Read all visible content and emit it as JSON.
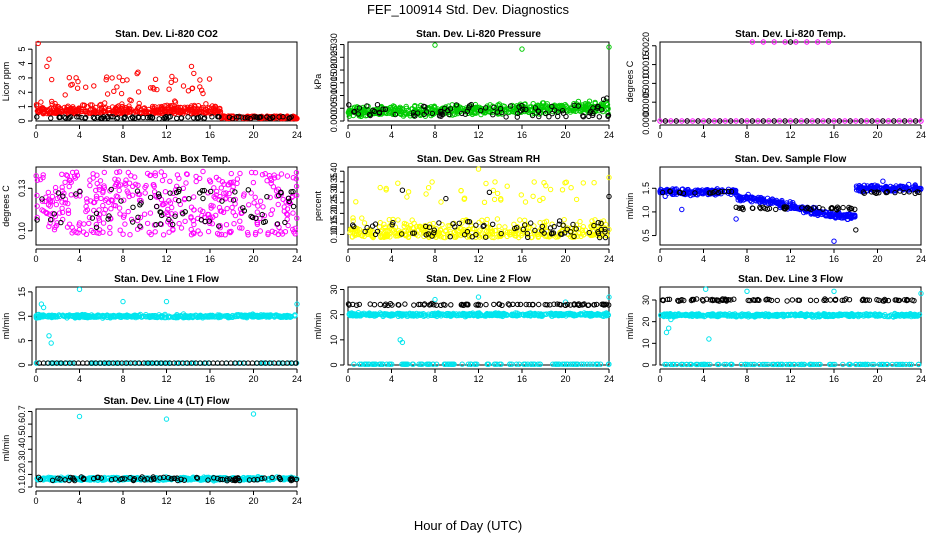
{
  "figure": {
    "title": "FEF_100914  Std. Dev. Diagnostics",
    "xlabel": "Hour of Day (UTC)"
  },
  "chart_data": [
    {
      "type": "scatter",
      "title": "Stan. Dev. Li-820 CO2",
      "ylabel": "Licor ppm",
      "xlim": [
        0,
        24
      ],
      "ylim": [
        0,
        5.5
      ],
      "xticks": [
        "0",
        "4",
        "8",
        "12",
        "16",
        "20",
        "24"
      ],
      "yticks": [
        "0",
        "1",
        "2",
        "3",
        "4",
        "5"
      ],
      "ytickvals": [
        0,
        1,
        2,
        3,
        4,
        5
      ],
      "series": [
        {
          "name": "red",
          "color": "#ff0000",
          "pattern": "co2_red"
        },
        {
          "name": "black",
          "color": "#000000",
          "pattern": "co2_black"
        }
      ]
    },
    {
      "type": "scatter",
      "title": "Stan. Dev. Li-820 Pressure",
      "ylabel": "kPa",
      "xlim": [
        0,
        24
      ],
      "ylim": [
        0,
        0.031
      ],
      "xticks": [
        "0",
        "4",
        "8",
        "12",
        "16",
        "20",
        "24"
      ],
      "yticks": [
        "0.000",
        "0.005",
        "0.010",
        "0.015",
        "0.020",
        "0.025",
        "0.030"
      ],
      "ytickvals": [
        0,
        0.005,
        0.01,
        0.015,
        0.02,
        0.025,
        0.03
      ],
      "series": [
        {
          "name": "green",
          "color": "#00cc00",
          "pattern": "press_green"
        },
        {
          "name": "black",
          "color": "#000000",
          "pattern": "press_black"
        }
      ]
    },
    {
      "type": "scatter",
      "title": "Stan. Dev. Li-820 Temp.",
      "ylabel": "degrees C",
      "xlim": [
        0,
        24
      ],
      "ylim": [
        0,
        0.0021
      ],
      "xticks": [
        "0",
        "4",
        "8",
        "12",
        "16",
        "20",
        "24"
      ],
      "yticks": [
        "0.0000",
        "0.0005",
        "0.0010",
        "0.0015",
        "0.0020"
      ],
      "ytickvals": [
        0,
        0.0005,
        0.001,
        0.0015,
        0.002
      ],
      "series": [
        {
          "name": "magenta",
          "color": "#ff00ff",
          "pattern": "temp_magenta"
        },
        {
          "name": "black",
          "color": "#000000",
          "pattern": "temp_black"
        }
      ]
    },
    {
      "type": "scatter",
      "title": "Stan. Dev. Amb. Box Temp.",
      "ylabel": "degrees C",
      "xlim": [
        0,
        24
      ],
      "ylim": [
        0.09,
        0.145
      ],
      "xticks": [
        "0",
        "4",
        "8",
        "12",
        "16",
        "20",
        "24"
      ],
      "yticks": [
        "0.10",
        "0.13"
      ],
      "ytickvals": [
        0.1,
        0.13
      ],
      "series": [
        {
          "name": "magenta",
          "color": "#ff00ff",
          "pattern": "box_magenta"
        },
        {
          "name": "black",
          "color": "#000000",
          "pattern": "box_black"
        }
      ]
    },
    {
      "type": "scatter",
      "title": "Stan. Dev. Gas Stream RH",
      "ylabel": "percent",
      "xlim": [
        0,
        24
      ],
      "ylim": [
        0.05,
        0.42
      ],
      "xticks": [
        "0",
        "4",
        "8",
        "12",
        "16",
        "20",
        "24"
      ],
      "yticks": [
        "0.10",
        "0.15",
        "0.20",
        "0.25",
        "0.30",
        "0.35",
        "0.40"
      ],
      "ytickvals": [
        0.1,
        0.15,
        0.2,
        0.25,
        0.3,
        0.35,
        0.4
      ],
      "series": [
        {
          "name": "yellow",
          "color": "#ffff00",
          "pattern": "rh_yellow"
        },
        {
          "name": "black",
          "color": "#000000",
          "pattern": "rh_black"
        }
      ]
    },
    {
      "type": "scatter",
      "title": "Stan. Dev. Sample Flow",
      "ylabel": "ml/min",
      "xlim": [
        0,
        24
      ],
      "ylim": [
        0.3,
        1.95
      ],
      "xticks": [
        "0",
        "4",
        "8",
        "12",
        "16",
        "20",
        "24"
      ],
      "yticks": [
        "0.5",
        "1.0",
        "1.5"
      ],
      "ytickvals": [
        0.5,
        1.0,
        1.5
      ],
      "series": [
        {
          "name": "blue",
          "color": "#0000ff",
          "pattern": "flow_blue"
        },
        {
          "name": "black",
          "color": "#000000",
          "pattern": "flow_black"
        }
      ]
    },
    {
      "type": "scatter",
      "title": "Stan. Dev. Line 1 Flow",
      "ylabel": "ml/min",
      "xlim": [
        0,
        24
      ],
      "ylim": [
        0,
        16
      ],
      "xticks": [
        "0",
        "4",
        "8",
        "12",
        "16",
        "20",
        "24"
      ],
      "yticks": [
        "0",
        "5",
        "10",
        "15"
      ],
      "ytickvals": [
        0,
        5,
        10,
        15
      ],
      "series": [
        {
          "name": "cyan",
          "color": "#00e5ee",
          "pattern": "l1_cyan"
        },
        {
          "name": "black",
          "color": "#000000",
          "pattern": "l1_black"
        }
      ]
    },
    {
      "type": "scatter",
      "title": "Stan. Dev. Line 2 Flow",
      "ylabel": "ml/min",
      "xlim": [
        0,
        24
      ],
      "ylim": [
        0,
        31
      ],
      "xticks": [
        "0",
        "4",
        "8",
        "12",
        "16",
        "20",
        "24"
      ],
      "yticks": [
        "0",
        "10",
        "20",
        "30"
      ],
      "ytickvals": [
        0,
        10,
        20,
        30
      ],
      "series": [
        {
          "name": "cyan",
          "color": "#00e5ee",
          "pattern": "l2_cyan"
        },
        {
          "name": "black",
          "color": "#000000",
          "pattern": "l2_black"
        }
      ]
    },
    {
      "type": "scatter",
      "title": "Stan. Dev. Line 3 Flow",
      "ylabel": "ml/min",
      "xlim": [
        0,
        24
      ],
      "ylim": [
        0,
        36
      ],
      "xticks": [
        "0",
        "4",
        "8",
        "12",
        "16",
        "20",
        "24"
      ],
      "yticks": [
        "0",
        "10",
        "20",
        "30"
      ],
      "ytickvals": [
        0,
        10,
        20,
        30
      ],
      "series": [
        {
          "name": "cyan",
          "color": "#00e5ee",
          "pattern": "l3_cyan"
        },
        {
          "name": "black",
          "color": "#000000",
          "pattern": "l3_black"
        }
      ]
    },
    {
      "type": "scatter",
      "title": "Stan. Dev. Line 4 (LT) Flow",
      "ylabel": "ml/min",
      "xlim": [
        0,
        24
      ],
      "ylim": [
        0.1,
        0.72
      ],
      "xticks": [
        "0",
        "4",
        "8",
        "12",
        "16",
        "20",
        "24"
      ],
      "yticks": [
        "0.1",
        "0.2",
        "0.3",
        "0.4",
        "0.5",
        "0.6",
        "0.7"
      ],
      "ytickvals": [
        0.1,
        0.2,
        0.3,
        0.4,
        0.5,
        0.6,
        0.7
      ],
      "series": [
        {
          "name": "cyan",
          "color": "#00e5ee",
          "pattern": "l4_cyan"
        },
        {
          "name": "black",
          "color": "#000000",
          "pattern": "l4_black"
        }
      ]
    }
  ]
}
